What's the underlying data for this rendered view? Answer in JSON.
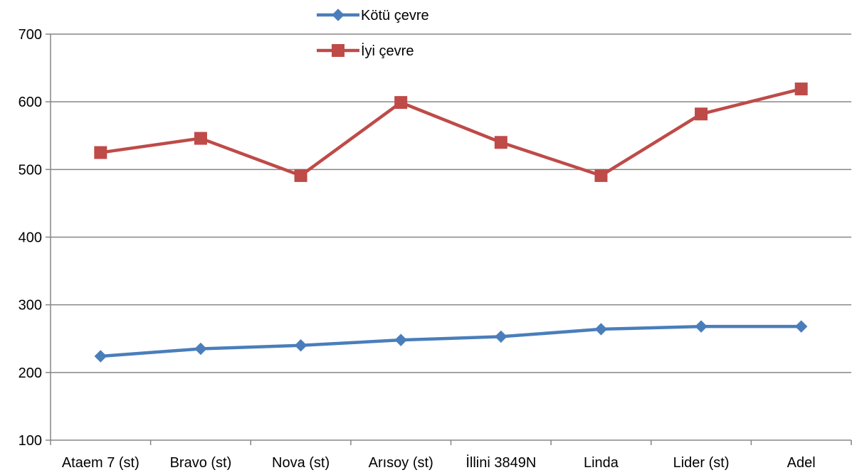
{
  "chart_data": {
    "type": "line",
    "title": "",
    "xlabel": "",
    "ylabel": "",
    "categories": [
      "Ataem 7 (st)",
      "Bravo (st)",
      "Nova (st)",
      "Arısoy (st)",
      "İllini 3849N",
      "Linda",
      "Lider (st)",
      "Adel"
    ],
    "ylim": [
      100,
      700
    ],
    "yticks": [
      "100",
      "200",
      "300",
      "400",
      "500",
      "600",
      "700"
    ],
    "grid": true,
    "legend_position": "top-center",
    "series": [
      {
        "name": "Kötü çevre",
        "color": "#4a7ebb",
        "marker": "diamond",
        "values": [
          224,
          235,
          240,
          248,
          253,
          264,
          268,
          268
        ]
      },
      {
        "name": "İyi çevre",
        "color": "#be4b48",
        "marker": "square",
        "values": [
          525,
          546,
          491,
          599,
          540,
          491,
          582,
          619
        ]
      }
    ]
  }
}
